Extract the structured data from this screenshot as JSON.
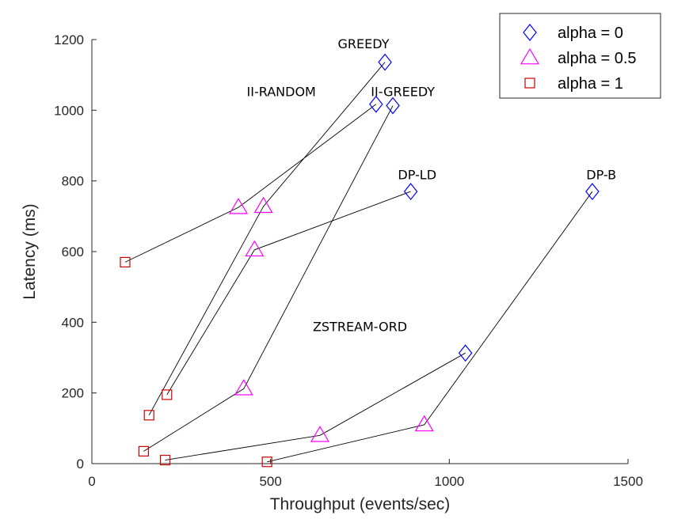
{
  "chart_data": {
    "type": "scatter",
    "title": "",
    "xlabel": "Throughput (events/sec)",
    "ylabel": "Latency (ms)",
    "xlim": [
      0,
      1500
    ],
    "ylim": [
      0,
      1200
    ],
    "xticks": [
      0,
      500,
      1000,
      1500
    ],
    "yticks": [
      0,
      200,
      400,
      600,
      800,
      1000,
      1200
    ],
    "grid": false,
    "legend": {
      "placement": "top-right",
      "entries": [
        {
          "label": "alpha = 0",
          "marker": "diamond",
          "color": "#0000ff"
        },
        {
          "label": "alpha = 0.5",
          "marker": "triangle",
          "color": "#ff00ff"
        },
        {
          "label": "alpha = 1",
          "marker": "square",
          "color": "#cc0000"
        }
      ]
    },
    "series": [
      {
        "name": "GREEDY",
        "points": [
          {
            "alpha": "1",
            "x": 160,
            "y": 137
          },
          {
            "alpha": "0.5",
            "x": 480,
            "y": 728
          },
          {
            "alpha": "0",
            "x": 820,
            "y": 1136
          }
        ]
      },
      {
        "name": "II-RANDOM",
        "points": [
          {
            "alpha": "1",
            "x": 93,
            "y": 570
          },
          {
            "alpha": "0.5",
            "x": 410,
            "y": 725
          },
          {
            "alpha": "0",
            "x": 795,
            "y": 1017
          }
        ]
      },
      {
        "name": "II-GREEDY",
        "points": [
          {
            "alpha": "1",
            "x": 145,
            "y": 35
          },
          {
            "alpha": "0.5",
            "x": 425,
            "y": 212
          },
          {
            "alpha": "0",
            "x": 842,
            "y": 1013
          }
        ]
      },
      {
        "name": "DP-LD",
        "points": [
          {
            "alpha": "1",
            "x": 210,
            "y": 195
          },
          {
            "alpha": "0.5",
            "x": 455,
            "y": 605
          },
          {
            "alpha": "0",
            "x": 892,
            "y": 770
          }
        ]
      },
      {
        "name": "DP-B",
        "points": [
          {
            "alpha": "1",
            "x": 490,
            "y": 5
          },
          {
            "alpha": "0.5",
            "x": 930,
            "y": 110
          },
          {
            "alpha": "0",
            "x": 1400,
            "y": 770
          }
        ]
      },
      {
        "name": "ZSTREAM-ORD",
        "points": [
          {
            "alpha": "1",
            "x": 205,
            "y": 10
          },
          {
            "alpha": "0.5",
            "x": 638,
            "y": 80
          },
          {
            "alpha": "0",
            "x": 1045,
            "y": 313
          }
        ]
      }
    ],
    "annotations": [
      {
        "text": "GREEDY",
        "x": 760,
        "y": 1175
      },
      {
        "text": "II-RANDOM",
        "x": 530,
        "y": 1040
      },
      {
        "text": "II-GREEDY",
        "x": 870,
        "y": 1040
      },
      {
        "text": "DP-LD",
        "x": 910,
        "y": 805
      },
      {
        "text": "DP-B",
        "x": 1425,
        "y": 805
      },
      {
        "text": "ZSTREAM-ORD",
        "x": 750,
        "y": 375
      }
    ]
  }
}
